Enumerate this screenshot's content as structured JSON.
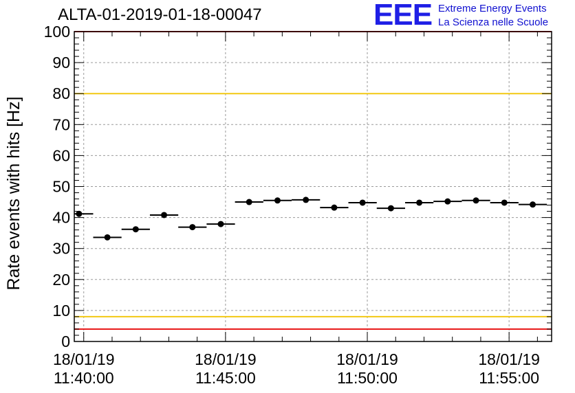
{
  "title": "ALTA-01-2019-01-18-00047",
  "logo": {
    "mark": "EEE",
    "line1": "Extreme Energy Events",
    "line2": "La Scienza nelle Scuole",
    "color": "#1f1fe6"
  },
  "chart_data": {
    "type": "scatter",
    "ylabel": "Rate events with hits [Hz]",
    "xlabel": "",
    "x_unit": "time (HH:MM:SS, 18/01/19)",
    "xlim": [
      "11:39:40",
      "11:56:30"
    ],
    "ylim": [
      0,
      100
    ],
    "y_ticks": [
      "0",
      "10",
      "20",
      "30",
      "40",
      "50",
      "60",
      "70",
      "80",
      "90",
      "100"
    ],
    "x_ticks": [
      {
        "date": "18/01/19",
        "time": "11:40:00"
      },
      {
        "date": "18/01/19",
        "time": "11:45:00"
      },
      {
        "date": "18/01/19",
        "time": "11:50:00"
      },
      {
        "date": "18/01/19",
        "time": "11:55:00"
      }
    ],
    "grid": true,
    "bin_width_seconds": 60,
    "series": [
      {
        "color": "#000000",
        "points": [
          {
            "x": "11:39:50",
            "y": 41.2
          },
          {
            "x": "11:40:50",
            "y": 33.6
          },
          {
            "x": "11:41:50",
            "y": 36.2
          },
          {
            "x": "11:42:50",
            "y": 40.8
          },
          {
            "x": "11:43:50",
            "y": 36.9
          },
          {
            "x": "11:44:50",
            "y": 37.9
          },
          {
            "x": "11:45:50",
            "y": 45.0
          },
          {
            "x": "11:46:50",
            "y": 45.5
          },
          {
            "x": "11:47:50",
            "y": 45.7
          },
          {
            "x": "11:48:50",
            "y": 43.2
          },
          {
            "x": "11:49:50",
            "y": 44.8
          },
          {
            "x": "11:50:50",
            "y": 43.0
          },
          {
            "x": "11:51:50",
            "y": 44.8
          },
          {
            "x": "11:52:50",
            "y": 45.2
          },
          {
            "x": "11:53:50",
            "y": 45.5
          },
          {
            "x": "11:54:50",
            "y": 44.8
          },
          {
            "x": "11:55:50",
            "y": 44.2
          }
        ]
      }
    ],
    "reference_lines": [
      {
        "y": 100,
        "color": "#e8191a"
      },
      {
        "y": 80,
        "color": "#f2c812"
      },
      {
        "y": 8,
        "color": "#f2c812"
      },
      {
        "y": 4,
        "color": "#e8191a"
      }
    ]
  }
}
